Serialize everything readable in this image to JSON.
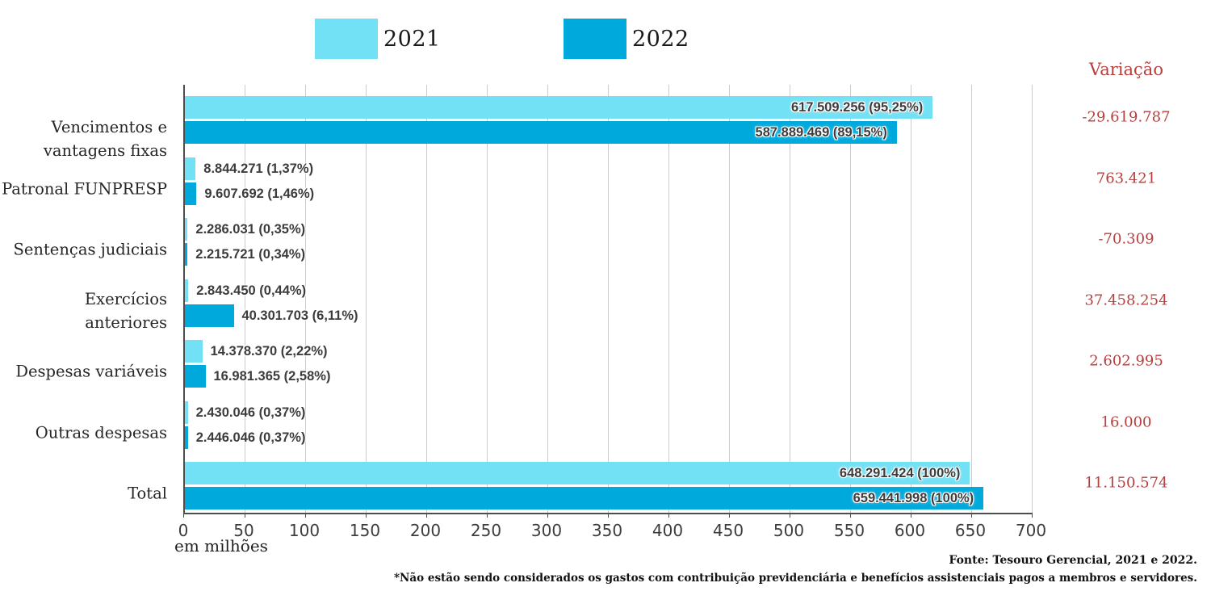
{
  "legend": {
    "items": [
      {
        "label": "2021",
        "color": "#73e1f5"
      },
      {
        "label": "2022",
        "color": "#00a9dc"
      }
    ]
  },
  "variacao": {
    "title": "Variação",
    "color": "#b5403e",
    "values": [
      "-29.619.787",
      "763.421",
      "-70.309",
      "37.458.254",
      "2.602.995",
      "16.000",
      "11.150.574"
    ]
  },
  "axis": {
    "tick_labels": [
      "0",
      "50",
      "100",
      "150",
      "200",
      "250",
      "300",
      "350",
      "400",
      "450",
      "500",
      "550",
      "600",
      "650",
      "700"
    ],
    "caption": "em milhões"
  },
  "footer": {
    "source": "Fonte: Tesouro Gerencial, 2021 e 2022.",
    "note": "*Não estão sendo considerados os gastos com contribuição previdenciária e benefícios assistenciais pagos a membros e servidores."
  },
  "chart_data": {
    "type": "bar",
    "orientation": "horizontal",
    "unit": "em milhões",
    "xlim": [
      0,
      700
    ],
    "x_tick_step": 50,
    "grid": true,
    "legend_position": "top",
    "categories": [
      "Vencimentos e\nvantagens fixas",
      "Patronal FUNPRESP",
      "Sentenças judiciais",
      "Exercícios anteriores",
      "Despesas variáveis",
      "Outras despesas",
      "Total"
    ],
    "series": [
      {
        "name": "2021",
        "color": "#73e1f5",
        "values_millions": [
          617.509256,
          8.844271,
          2.286031,
          2.84345,
          14.37837,
          2.430046,
          648.291424
        ],
        "labels": [
          "617.509.256 (95,25%)",
          "8.844.271 (1,37%)",
          "2.286.031 (0,35%)",
          "2.843.450 (0,44%)",
          "14.378.370 (2,22%)",
          "2.430.046 (0,37%)",
          "648.291.424 (100%)"
        ]
      },
      {
        "name": "2022",
        "color": "#00a9dc",
        "values_millions": [
          587.889469,
          9.607692,
          2.215721,
          40.301703,
          16.981365,
          2.446046,
          659.441998
        ],
        "labels": [
          "587.889.469 (89,15%)",
          "9.607.692 (1,46%)",
          "2.215.721 (0,34%)",
          "40.301.703 (6,11%)",
          "16.981.365 (2,58%)",
          "2.446.046 (0,37%)",
          "659.441.998 (100%)"
        ]
      }
    ],
    "variation_title": "Variação",
    "variation_values": [
      -29619787,
      763421,
      -70309,
      37458254,
      2602995,
      16000,
      11150574
    ]
  }
}
